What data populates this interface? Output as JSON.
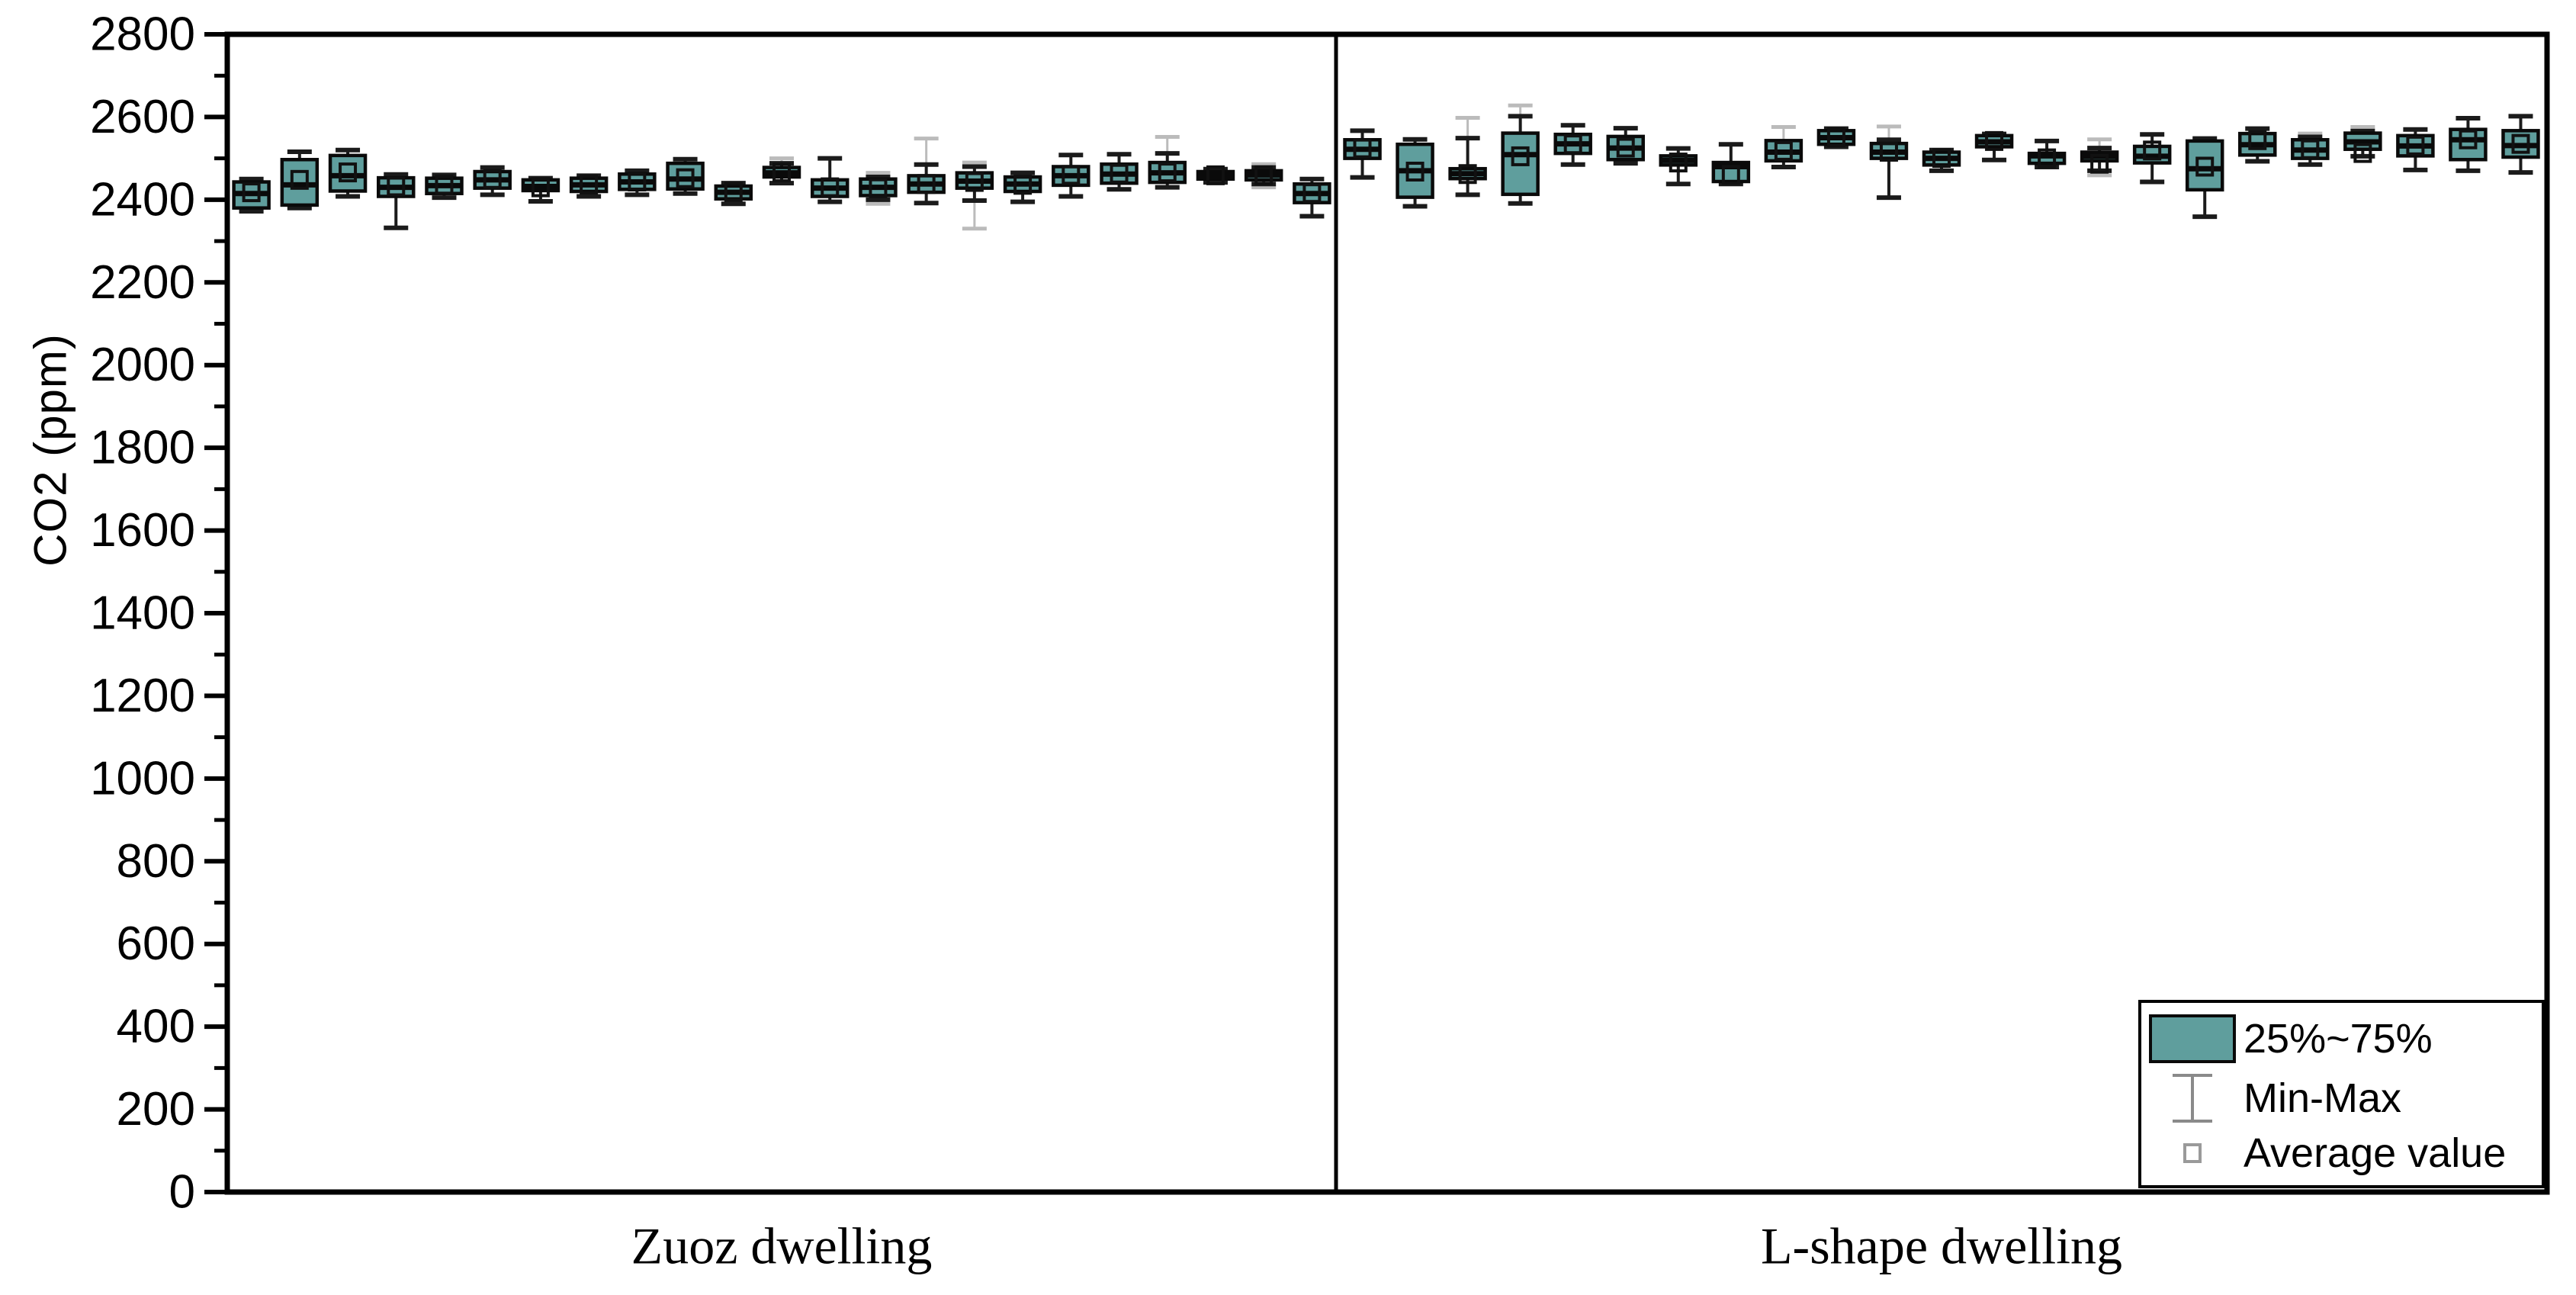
{
  "figure": {
    "background": "#ffffff"
  },
  "chart_data": {
    "type": "boxplot",
    "title": "",
    "xlabel": "",
    "ylabel": "CO2 (ppm)",
    "ylim": [
      0,
      2800
    ],
    "yticks": [
      0,
      200,
      400,
      600,
      800,
      1000,
      1200,
      1400,
      1600,
      1800,
      2000,
      2200,
      2400,
      2600,
      2800
    ],
    "yminor_step": 100,
    "grid": "off",
    "frame": "full-box-with-center-divider",
    "legend": {
      "position": "bottom-right",
      "items": [
        {
          "symbol": "filled-box",
          "label": "25%~75%"
        },
        {
          "symbol": "whisker-ibeam",
          "label": "Min-Max"
        },
        {
          "symbol": "open-square",
          "label": "Average value"
        }
      ]
    },
    "colors": {
      "box_fill": "#5f9e9d",
      "box_border": "#0a0a0a",
      "median": "#0a0a0a",
      "whisker": "#1b1b1b",
      "whisker_faint": "#bbbbbb",
      "legend_symbol_gray": "#8a8a8a",
      "frame": "#000000"
    },
    "panels": [
      {
        "label": "Zuoz dwelling",
        "boxes": [
          {
            "q1": 2380,
            "q3": 2443,
            "med": 2415,
            "mean": 2418,
            "lo": 2372,
            "hi": 2450
          },
          {
            "q1": 2387,
            "q3": 2497,
            "med": 2436,
            "mean": 2448,
            "lo": 2380,
            "hi": 2516
          },
          {
            "q1": 2421,
            "q3": 2507,
            "med": 2458,
            "mean": 2466,
            "lo": 2408,
            "hi": 2520
          },
          {
            "q1": 2408,
            "q3": 2453,
            "med": 2430,
            "mean": 2432,
            "lo": 2332,
            "hi": 2461
          },
          {
            "q1": 2415,
            "q3": 2452,
            "med": 2434,
            "mean": 2436,
            "lo": 2405,
            "hi": 2460
          },
          {
            "q1": 2428,
            "q3": 2468,
            "med": 2448,
            "mean": 2450,
            "lo": 2412,
            "hi": 2478
          },
          {
            "q1": 2422,
            "q3": 2448,
            "med": 2432,
            "mean": 2430,
            "lo": 2396,
            "hi": 2452
          },
          {
            "q1": 2420,
            "q3": 2452,
            "med": 2436,
            "mean": 2437,
            "lo": 2408,
            "hi": 2458
          },
          {
            "q1": 2425,
            "q3": 2462,
            "med": 2443,
            "mean": 2444,
            "lo": 2412,
            "hi": 2470
          },
          {
            "q1": 2426,
            "q3": 2488,
            "med": 2450,
            "mean": 2452,
            "lo": 2415,
            "hi": 2498
          },
          {
            "q1": 2402,
            "q3": 2433,
            "med": 2418,
            "mean": 2419,
            "lo": 2390,
            "hi": 2440
          },
          {
            "q1": 2455,
            "q3": 2478,
            "med": 2465,
            "mean": 2466,
            "lo": 2440,
            "hi": 2488,
            "ghi": 2500
          },
          {
            "q1": 2408,
            "q3": 2448,
            "med": 2428,
            "mean": 2430,
            "lo": 2395,
            "hi": 2500
          },
          {
            "q1": 2410,
            "q3": 2450,
            "med": 2430,
            "mean": 2428,
            "lo": 2400,
            "hi": 2455,
            "glo": 2390,
            "ghi": 2465
          },
          {
            "q1": 2418,
            "q3": 2458,
            "med": 2438,
            "mean": 2438,
            "lo": 2392,
            "hi": 2485,
            "ghi": 2548
          },
          {
            "q1": 2428,
            "q3": 2465,
            "med": 2445,
            "mean": 2443,
            "lo": 2398,
            "hi": 2480,
            "glo": 2330,
            "ghi": 2490
          },
          {
            "q1": 2420,
            "q3": 2455,
            "med": 2438,
            "mean": 2436,
            "lo": 2395,
            "hi": 2465
          },
          {
            "q1": 2435,
            "q3": 2480,
            "med": 2458,
            "mean": 2460,
            "lo": 2408,
            "hi": 2508
          },
          {
            "q1": 2440,
            "q3": 2486,
            "med": 2462,
            "mean": 2463,
            "lo": 2425,
            "hi": 2510
          },
          {
            "q1": 2442,
            "q3": 2490,
            "med": 2465,
            "mean": 2466,
            "lo": 2430,
            "hi": 2512,
            "ghi": 2552
          },
          {
            "q1": 2450,
            "q3": 2468,
            "med": 2458,
            "mean": 2459,
            "lo": 2442,
            "hi": 2474
          },
          {
            "q1": 2448,
            "q3": 2470,
            "med": 2460,
            "mean": 2459,
            "lo": 2438,
            "hi": 2478,
            "glo": 2430,
            "ghi": 2486
          },
          {
            "q1": 2393,
            "q3": 2438,
            "med": 2415,
            "mean": 2416,
            "lo": 2360,
            "hi": 2450
          }
        ]
      },
      {
        "label": "L-shape dwelling",
        "boxes": [
          {
            "q1": 2500,
            "q3": 2545,
            "med": 2522,
            "mean": 2524,
            "lo": 2454,
            "hi": 2567
          },
          {
            "q1": 2406,
            "q3": 2534,
            "med": 2470,
            "mean": 2468,
            "lo": 2384,
            "hi": 2546
          },
          {
            "q1": 2451,
            "q3": 2475,
            "med": 2463,
            "mean": 2462,
            "lo": 2412,
            "hi": 2549,
            "ghi": 2598
          },
          {
            "q1": 2413,
            "q3": 2561,
            "med": 2509,
            "mean": 2505,
            "lo": 2391,
            "hi": 2602,
            "ghi": 2628
          },
          {
            "q1": 2512,
            "q3": 2558,
            "med": 2535,
            "mean": 2534,
            "lo": 2485,
            "hi": 2580
          },
          {
            "q1": 2497,
            "q3": 2553,
            "med": 2525,
            "mean": 2526,
            "lo": 2488,
            "hi": 2573
          },
          {
            "q1": 2484,
            "q3": 2506,
            "med": 2495,
            "mean": 2490,
            "lo": 2438,
            "hi": 2524
          },
          {
            "q1": 2444,
            "q3": 2490,
            "med": 2480,
            "mean": 2460,
            "lo": 2438,
            "hi": 2534
          },
          {
            "q1": 2494,
            "q3": 2543,
            "med": 2515,
            "mean": 2518,
            "lo": 2479,
            "hi": 2540,
            "ghi": 2576
          },
          {
            "q1": 2534,
            "q3": 2567,
            "med": 2550,
            "mean": 2551,
            "lo": 2528,
            "hi": 2572
          },
          {
            "q1": 2500,
            "q3": 2536,
            "med": 2515,
            "mean": 2516,
            "lo": 2405,
            "hi": 2545,
            "ghi": 2577
          },
          {
            "q1": 2484,
            "q3": 2515,
            "med": 2500,
            "mean": 2501,
            "lo": 2470,
            "hi": 2520
          },
          {
            "q1": 2528,
            "q3": 2555,
            "med": 2540,
            "mean": 2542,
            "lo": 2496,
            "hi": 2559
          },
          {
            "q1": 2488,
            "q3": 2512,
            "med": 2506,
            "mean": 2500,
            "lo": 2479,
            "hi": 2542
          },
          {
            "q1": 2494,
            "q3": 2515,
            "med": 2505,
            "mean": 2487,
            "lo": 2470,
            "hi": 2525,
            "glo": 2459,
            "ghi": 2546
          },
          {
            "q1": 2489,
            "q3": 2529,
            "med": 2505,
            "mean": 2519,
            "lo": 2443,
            "hi": 2558
          },
          {
            "q1": 2424,
            "q3": 2542,
            "med": 2475,
            "mean": 2480,
            "lo": 2359,
            "hi": 2548
          },
          {
            "q1": 2508,
            "q3": 2560,
            "med": 2533,
            "mean": 2544,
            "lo": 2493,
            "hi": 2572
          },
          {
            "q1": 2500,
            "q3": 2545,
            "med": 2520,
            "mean": 2522,
            "lo": 2485,
            "hi": 2552,
            "ghi": 2560
          },
          {
            "q1": 2522,
            "q3": 2561,
            "med": 2540,
            "mean": 2513,
            "lo": 2505,
            "hi": 2566,
            "ghi": 2576
          },
          {
            "q1": 2506,
            "q3": 2555,
            "med": 2530,
            "mean": 2531,
            "lo": 2472,
            "hi": 2570
          },
          {
            "q1": 2497,
            "q3": 2570,
            "med": 2545,
            "mean": 2546,
            "lo": 2470,
            "hi": 2597
          },
          {
            "q1": 2503,
            "q3": 2567,
            "med": 2531,
            "mean": 2535,
            "lo": 2466,
            "hi": 2602
          }
        ]
      }
    ]
  }
}
